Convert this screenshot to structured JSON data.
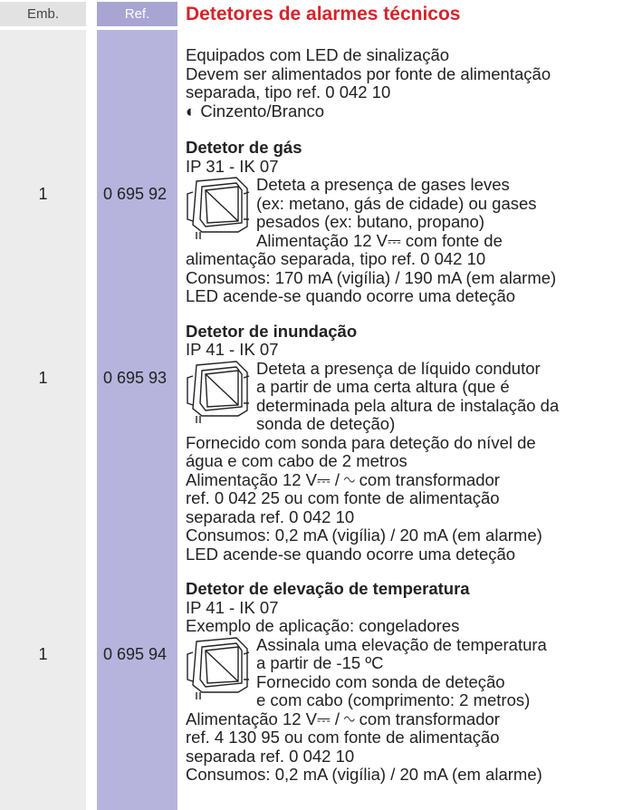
{
  "header": {
    "emb": "Emb.",
    "ref": "Ref.",
    "title": "Detetores de alarmes técnicos"
  },
  "intro": [
    "Equipados com LED de sinalização",
    "Devem ser alimentados por fonte de alimentação",
    "separada, tipo ref. 0 042 10",
    "◐ Cinzento/Branco"
  ],
  "sections": [
    {
      "emb": "1",
      "ref": "0 695 92",
      "title": "Detetor de gás",
      "before": [
        "IP 31 - IK 07"
      ],
      "beside": [
        "Deteta a presença de gases leves",
        "(ex: metano, gás de cidade) ou gases",
        "pesados (ex: butano, propano)",
        "Alimentação 12 V⎓  com fonte de"
      ],
      "after": [
        "alimentação separada, tipo ref. 0 042 10",
        "Consumos: 170 mA (vigília) / 190 mA (em alarme)",
        "LED acende-se quando ocorre uma deteção"
      ]
    },
    {
      "emb": "1",
      "ref": "0 695 93",
      "title": "Detetor de inundação",
      "before": [
        "IP 41 - IK 07"
      ],
      "beside": [
        "Deteta a presença de líquido condutor",
        "a partir de uma certa altura (que é",
        "determinada pela altura de instalação da",
        "sonda de deteção)"
      ],
      "after": [
        "Fornecido com sonda para deteção do nível de",
        "água e com cabo de 2 metros",
        "Alimentação 12 V⎓ / ∿  com transformador",
        "ref. 0 042 25 ou com fonte de alimentação",
        "separada ref. 0 042 10",
        "Consumos: 0,2 mA (vigília) / 20 mA (em alarme)",
        "LED acende-se quando ocorre uma deteção"
      ]
    },
    {
      "emb": "1",
      "ref": "0 695 94",
      "title": "Detetor de elevação de temperatura",
      "before": [
        "IP 41 - IK 07",
        "Exemplo de aplicação: congeladores"
      ],
      "beside": [
        "Assinala uma elevação de temperatura",
        "a partir de -15 ºC",
        "Fornecido com sonda de deteção",
        "e com cabo (comprimento: 2 metros)"
      ],
      "after": [
        "Alimentação 12 V⎓ / ∿  com transformador",
        "ref. 4 130 95 ou com fonte de alimentação",
        "separada ref. 0 042 10",
        "Consumos: 0,2 mA (vigília) / 20 mA (em alarme)"
      ]
    }
  ]
}
